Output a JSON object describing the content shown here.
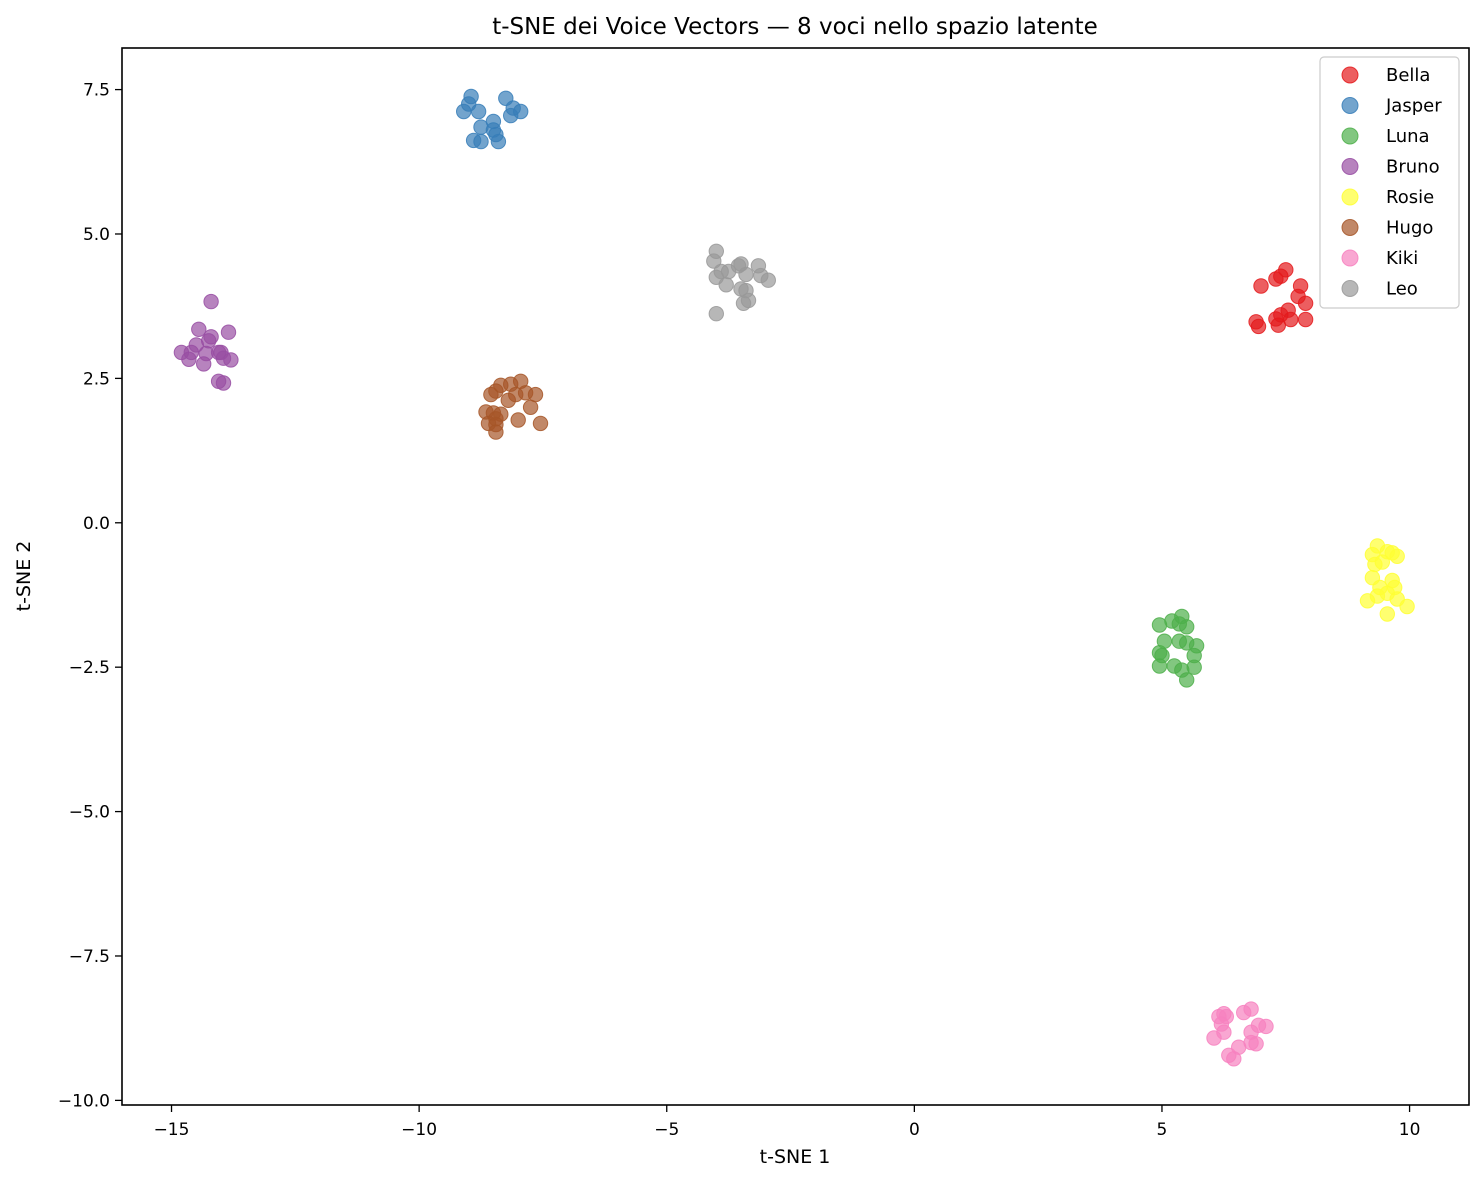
{
  "chart_data": {
    "type": "scatter",
    "title": "t-SNE dei Voice Vectors — 8 voci nello spazio latente",
    "xlabel": "t-SNE 1",
    "ylabel": "t-SNE 2",
    "xlim": [
      -16.0,
      11.2
    ],
    "ylim": [
      -10.08,
      8.22
    ],
    "xticks": [
      -15,
      -10,
      -5,
      0,
      5,
      10
    ],
    "xtick_labels": [
      "−15",
      "−10",
      "−5",
      "0",
      "5",
      "10"
    ],
    "yticks": [
      -10.0,
      -7.5,
      -5.0,
      -2.5,
      0.0,
      2.5,
      5.0,
      7.5
    ],
    "ytick_labels": [
      "−10.0",
      "−7.5",
      "−5.0",
      "−2.5",
      "0.0",
      "2.5",
      "5.0",
      "7.5"
    ],
    "grid": false,
    "legend_position": "top-right",
    "series": [
      {
        "name": "Bella",
        "color": "#e41a1c",
        "points": [
          [
            7.5,
            4.38
          ],
          [
            7.4,
            4.27
          ],
          [
            7.3,
            4.22
          ],
          [
            7.0,
            4.1
          ],
          [
            7.8,
            4.1
          ],
          [
            7.75,
            3.92
          ],
          [
            7.9,
            3.8
          ],
          [
            7.55,
            3.68
          ],
          [
            7.4,
            3.6
          ],
          [
            7.3,
            3.53
          ],
          [
            7.6,
            3.52
          ],
          [
            7.9,
            3.52
          ],
          [
            6.9,
            3.48
          ],
          [
            6.95,
            3.4
          ],
          [
            7.35,
            3.42
          ]
        ]
      },
      {
        "name": "Jasper",
        "color": "#377eb8",
        "points": [
          [
            -8.95,
            7.38
          ],
          [
            -8.25,
            7.35
          ],
          [
            -9.0,
            7.25
          ],
          [
            -9.1,
            7.12
          ],
          [
            -8.8,
            7.12
          ],
          [
            -8.1,
            7.18
          ],
          [
            -7.95,
            7.12
          ],
          [
            -8.15,
            7.05
          ],
          [
            -8.5,
            6.95
          ],
          [
            -8.75,
            6.85
          ],
          [
            -8.5,
            6.8
          ],
          [
            -8.45,
            6.72
          ],
          [
            -8.9,
            6.62
          ],
          [
            -8.75,
            6.6
          ],
          [
            -8.4,
            6.6
          ]
        ]
      },
      {
        "name": "Luna",
        "color": "#4daf4a",
        "points": [
          [
            5.4,
            -1.62
          ],
          [
            5.2,
            -1.7
          ],
          [
            5.35,
            -1.75
          ],
          [
            4.95,
            -1.77
          ],
          [
            5.5,
            -1.8
          ],
          [
            5.05,
            -2.05
          ],
          [
            5.35,
            -2.05
          ],
          [
            5.5,
            -2.08
          ],
          [
            5.7,
            -2.13
          ],
          [
            4.95,
            -2.25
          ],
          [
            5.0,
            -2.3
          ],
          [
            5.65,
            -2.3
          ],
          [
            4.95,
            -2.48
          ],
          [
            5.25,
            -2.48
          ],
          [
            5.4,
            -2.55
          ],
          [
            5.65,
            -2.5
          ],
          [
            5.5,
            -2.72
          ]
        ]
      },
      {
        "name": "Bruno",
        "color": "#984ea3",
        "points": [
          [
            -14.2,
            3.83
          ],
          [
            -14.45,
            3.35
          ],
          [
            -13.85,
            3.3
          ],
          [
            -14.2,
            3.22
          ],
          [
            -14.25,
            3.15
          ],
          [
            -14.5,
            3.08
          ],
          [
            -14.6,
            2.95
          ],
          [
            -14.8,
            2.95
          ],
          [
            -14.3,
            2.93
          ],
          [
            -14.05,
            2.95
          ],
          [
            -14.0,
            2.95
          ],
          [
            -14.65,
            2.83
          ],
          [
            -13.95,
            2.85
          ],
          [
            -14.35,
            2.75
          ],
          [
            -13.8,
            2.82
          ],
          [
            -14.05,
            2.45
          ],
          [
            -13.95,
            2.42
          ]
        ]
      },
      {
        "name": "Rosie",
        "color": "#ffff33",
        "points": [
          [
            9.35,
            -0.4
          ],
          [
            9.25,
            -0.55
          ],
          [
            9.55,
            -0.5
          ],
          [
            9.65,
            -0.52
          ],
          [
            9.75,
            -0.58
          ],
          [
            9.3,
            -0.72
          ],
          [
            9.45,
            -0.68
          ],
          [
            9.25,
            -0.95
          ],
          [
            9.65,
            -1.0
          ],
          [
            9.4,
            -1.12
          ],
          [
            9.7,
            -1.12
          ],
          [
            9.55,
            -1.22
          ],
          [
            9.75,
            -1.32
          ],
          [
            9.35,
            -1.27
          ],
          [
            9.15,
            -1.35
          ],
          [
            9.95,
            -1.45
          ],
          [
            9.55,
            -1.58
          ]
        ]
      },
      {
        "name": "Hugo",
        "color": "#a65628",
        "points": [
          [
            -7.95,
            2.45
          ],
          [
            -8.15,
            2.4
          ],
          [
            -8.35,
            2.38
          ],
          [
            -8.45,
            2.28
          ],
          [
            -8.55,
            2.22
          ],
          [
            -7.85,
            2.25
          ],
          [
            -7.65,
            2.22
          ],
          [
            -8.05,
            2.22
          ],
          [
            -8.2,
            2.12
          ],
          [
            -7.75,
            2.0
          ],
          [
            -8.65,
            1.92
          ],
          [
            -8.5,
            1.9
          ],
          [
            -8.35,
            1.88
          ],
          [
            -8.45,
            1.8
          ],
          [
            -8.0,
            1.78
          ],
          [
            -8.6,
            1.72
          ],
          [
            -8.45,
            1.7
          ],
          [
            -7.55,
            1.72
          ],
          [
            -8.45,
            1.57
          ]
        ]
      },
      {
        "name": "Kiki",
        "color": "#f781bf",
        "points": [
          [
            6.8,
            -8.42
          ],
          [
            6.65,
            -8.48
          ],
          [
            6.25,
            -8.5
          ],
          [
            6.15,
            -8.55
          ],
          [
            6.3,
            -8.55
          ],
          [
            6.2,
            -8.68
          ],
          [
            6.95,
            -8.7
          ],
          [
            7.1,
            -8.72
          ],
          [
            6.25,
            -8.82
          ],
          [
            6.8,
            -8.82
          ],
          [
            6.05,
            -8.92
          ],
          [
            6.8,
            -9.0
          ],
          [
            6.9,
            -9.02
          ],
          [
            6.55,
            -9.08
          ],
          [
            6.35,
            -9.22
          ],
          [
            6.45,
            -9.28
          ]
        ]
      },
      {
        "name": "Leo",
        "color": "#999999",
        "points": [
          [
            -4.0,
            4.7
          ],
          [
            -4.05,
            4.53
          ],
          [
            -3.5,
            4.48
          ],
          [
            -3.55,
            4.45
          ],
          [
            -3.15,
            4.45
          ],
          [
            -3.75,
            4.35
          ],
          [
            -3.9,
            4.35
          ],
          [
            -3.4,
            4.3
          ],
          [
            -3.1,
            4.28
          ],
          [
            -4.0,
            4.25
          ],
          [
            -2.95,
            4.2
          ],
          [
            -3.8,
            4.12
          ],
          [
            -3.5,
            4.05
          ],
          [
            -3.4,
            4.02
          ],
          [
            -3.35,
            3.85
          ],
          [
            -3.45,
            3.8
          ],
          [
            -4.0,
            3.62
          ]
        ]
      }
    ]
  }
}
